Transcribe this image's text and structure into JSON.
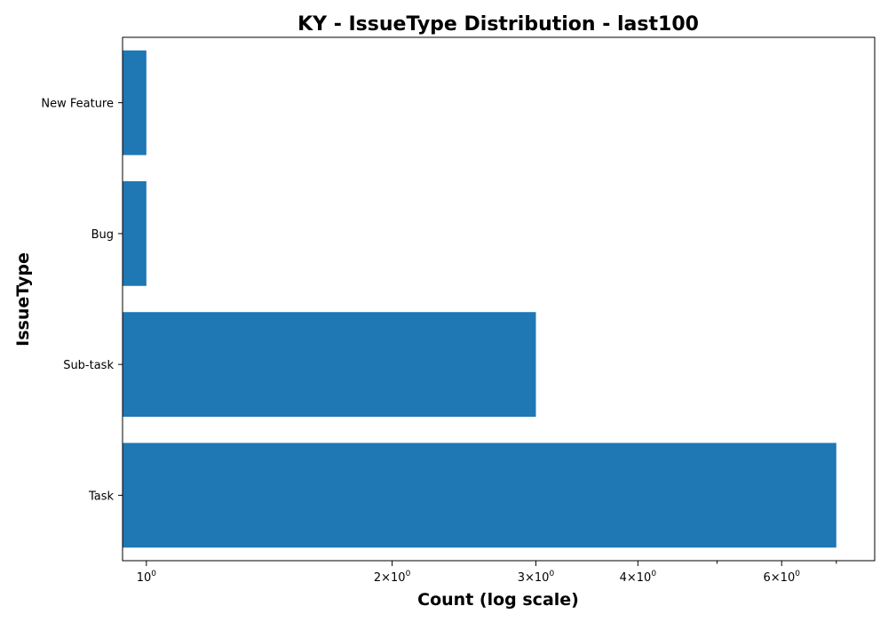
{
  "chart_data": {
    "type": "bar",
    "orientation": "horizontal",
    "title": "KY - IssueType Distribution - last100",
    "xlabel": "Count (log scale)",
    "ylabel": "IssueType",
    "x_scale": "log",
    "xlim": [
      0.935,
      7.8
    ],
    "categories": [
      "Task",
      "Sub-task",
      "Bug",
      "New Feature"
    ],
    "values": [
      7,
      3,
      1,
      1
    ],
    "color": "#1f77b4",
    "major_ticks": [
      {
        "value": 1,
        "base": "10",
        "exp": "0",
        "coef": ""
      },
      {
        "value": 2,
        "base": "10",
        "exp": "0",
        "coef": "2×"
      },
      {
        "value": 3,
        "base": "10",
        "exp": "0",
        "coef": "3×"
      },
      {
        "value": 4,
        "base": "10",
        "exp": "0",
        "coef": "4×"
      },
      {
        "value": 6,
        "base": "10",
        "exp": "0",
        "coef": "6×"
      }
    ],
    "minor_ticks": [
      5,
      7
    ],
    "grid": false,
    "legend": "none"
  }
}
